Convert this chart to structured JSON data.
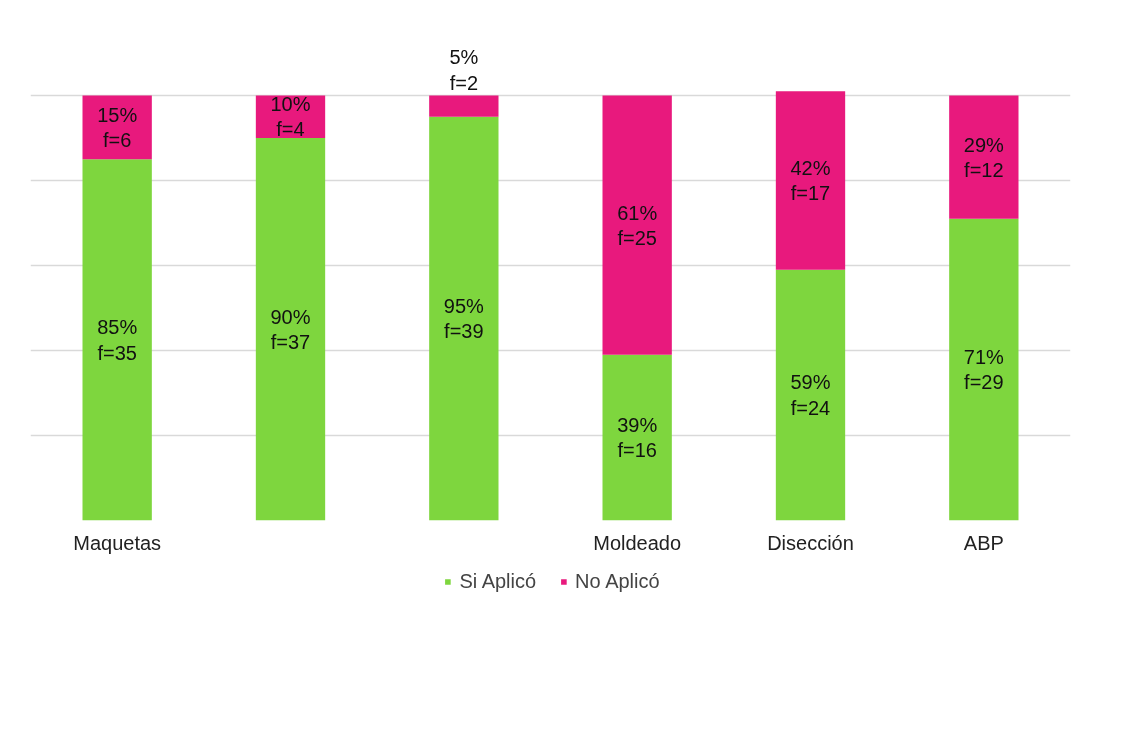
{
  "chart_data": {
    "type": "bar",
    "stacked": true,
    "categories": [
      "Maquetas",
      null,
      null,
      "Moldeado",
      "Disección",
      "ABP"
    ],
    "series": [
      {
        "name": "Si Aplicó",
        "color": "#7ed63e",
        "values": [
          85,
          90,
          95,
          39,
          59,
          71
        ],
        "value_labels": [
          "85%\nf=35",
          "90%\nf=37",
          "95%\nf=39",
          "39%\nf=16",
          "59%\nf=24",
          "71%\nf=29"
        ]
      },
      {
        "name": "No Aplicó",
        "color": "#e8197d",
        "values": [
          15,
          10,
          5,
          61,
          42,
          29
        ],
        "value_labels": [
          "15%\nf=6",
          "10%\nf=4",
          "5%\nf=2",
          "61%\nf=25",
          "42%\nf=17",
          "29%\nf=12"
        ]
      }
    ],
    "grid": "y",
    "tick_labels": "x",
    "legend": "bottom"
  }
}
